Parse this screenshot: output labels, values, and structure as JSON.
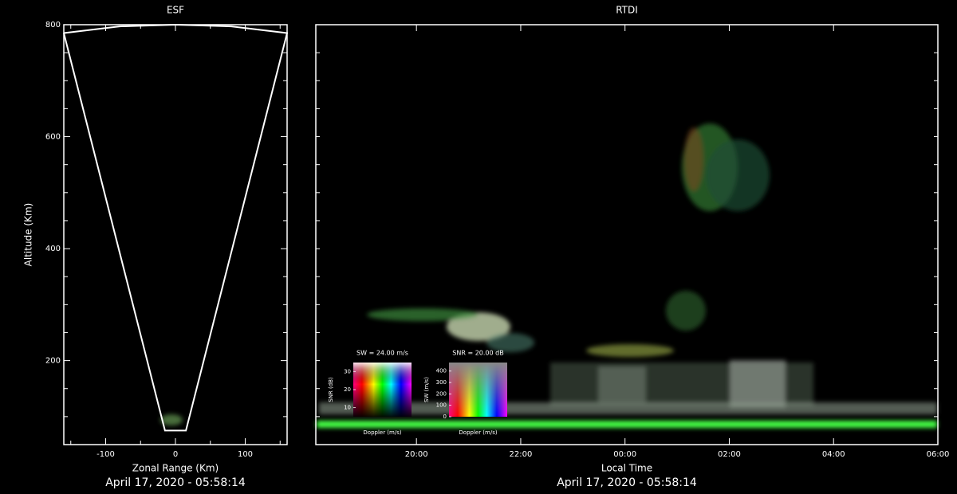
{
  "chart_data": [
    {
      "type": "fan",
      "title": "ESF",
      "xlabel": "Zonal Range (Km)",
      "ylabel": "Altitude (Km)",
      "footer": "April 17, 2020 - 05:58:14",
      "xlim": [
        -160,
        160
      ],
      "xticks": [
        -100,
        0,
        100
      ],
      "xticks_minor": [
        -150,
        -50,
        50,
        150
      ],
      "ylim": [
        50,
        800
      ],
      "yticks": [
        200,
        400,
        600,
        800
      ],
      "yticks_minor": [
        100,
        150,
        250,
        300,
        350,
        450,
        500,
        550,
        650,
        700,
        750
      ],
      "color": "#ffffff",
      "x": [
        -160,
        -15,
        15,
        160,
        80,
        0,
        -80,
        -160
      ],
      "y": [
        785,
        75,
        75,
        785,
        797,
        800,
        797,
        785
      ]
    },
    {
      "type": "rtdi",
      "title": "RTDI",
      "xlabel": "Local Time",
      "footer": "April 17, 2020 - 05:58:14",
      "xlim": [
        18.07,
        30
      ],
      "xticks": [
        {
          "value": 20,
          "label": "20:00"
        },
        {
          "value": 22,
          "label": "22:00"
        },
        {
          "value": 24,
          "label": "00:00"
        },
        {
          "value": 26,
          "label": "02:00"
        },
        {
          "value": 28,
          "label": "04:00"
        },
        {
          "value": 30,
          "label": "06:00"
        }
      ],
      "ylim": [
        50,
        800
      ],
      "yticks_minor": [
        100,
        150,
        200,
        250,
        300,
        350,
        400,
        450,
        500,
        550,
        600,
        650,
        700,
        750
      ],
      "insets": [
        {
          "title": "SW = 24.00 m/s",
          "ylabel": "SNR (dB)",
          "xlabel": "Doppler (m/s)",
          "ylim": [
            5,
            35
          ],
          "yticks": [
            10,
            20,
            30
          ]
        },
        {
          "title": "SNR = 20.00 dB",
          "ylabel": "SW (m/s)",
          "xlabel": "Doppler (m/s)",
          "ylim": [
            0,
            475
          ],
          "yticks": [
            0,
            100,
            200,
            300,
            400
          ]
        }
      ]
    }
  ]
}
